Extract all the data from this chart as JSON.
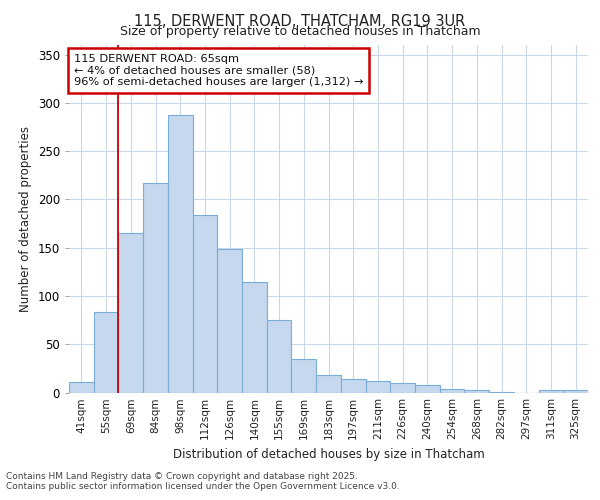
{
  "title_line1": "115, DERWENT ROAD, THATCHAM, RG19 3UR",
  "title_line2": "Size of property relative to detached houses in Thatcham",
  "xlabel": "Distribution of detached houses by size in Thatcham",
  "ylabel": "Number of detached properties",
  "categories": [
    "41sqm",
    "55sqm",
    "69sqm",
    "84sqm",
    "98sqm",
    "112sqm",
    "126sqm",
    "140sqm",
    "155sqm",
    "169sqm",
    "183sqm",
    "197sqm",
    "211sqm",
    "226sqm",
    "240sqm",
    "254sqm",
    "268sqm",
    "282sqm",
    "297sqm",
    "311sqm",
    "325sqm"
  ],
  "values": [
    11,
    83,
    165,
    217,
    288,
    184,
    149,
    114,
    75,
    35,
    18,
    14,
    12,
    10,
    8,
    4,
    3,
    1,
    0,
    3,
    3
  ],
  "bar_color": "#c5d8ee",
  "bar_edge_color": "#7aaed6",
  "vline_x_index": 1.5,
  "annotation_box_text": "115 DERWENT ROAD: 65sqm\n← 4% of detached houses are smaller (58)\n96% of semi-detached houses are larger (1,312) →",
  "annotation_box_color": "#ffffff",
  "annotation_box_edge_color": "#cc0000",
  "ylim": [
    0,
    360
  ],
  "yticks": [
    0,
    50,
    100,
    150,
    200,
    250,
    300,
    350
  ],
  "footer_line1": "Contains HM Land Registry data © Crown copyright and database right 2025.",
  "footer_line2": "Contains public sector information licensed under the Open Government Licence v3.0.",
  "fig_bg_color": "#ffffff",
  "plot_bg_color": "#ffffff",
  "grid_color": "#c8d8e8"
}
